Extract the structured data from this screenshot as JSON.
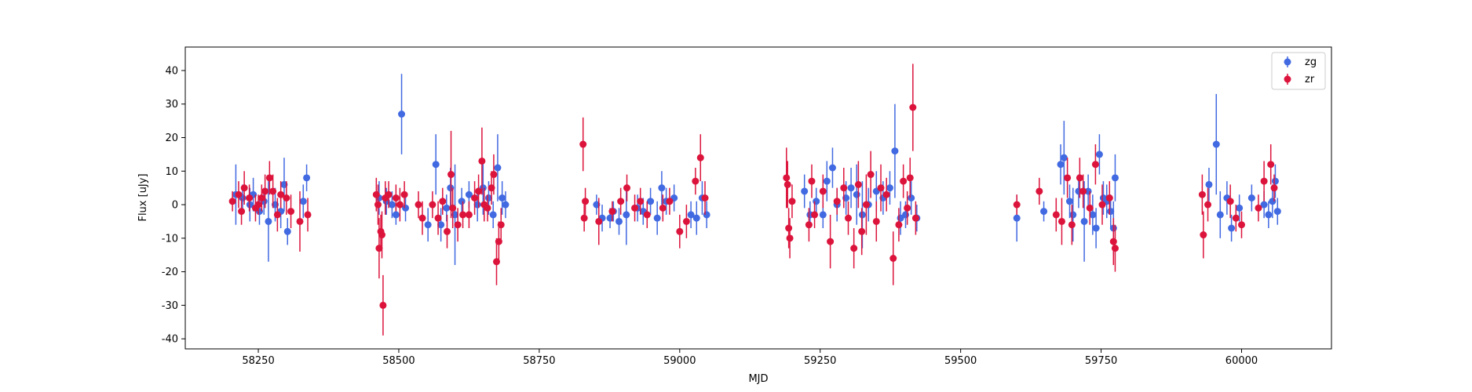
{
  "chart_data": {
    "type": "scatter",
    "title": "",
    "xlabel": "MJD",
    "ylabel": "Flux [uJy]",
    "xlim": [
      58120,
      60160
    ],
    "ylim": [
      -43,
      47
    ],
    "xticks": [
      58250,
      58500,
      58750,
      59000,
      59250,
      59500,
      59750,
      60000
    ],
    "yticks": [
      -40,
      -30,
      -20,
      -10,
      0,
      10,
      20,
      30,
      40
    ],
    "grid": false,
    "legend": "top-right",
    "colors": {
      "zg": "#4169e1",
      "zr": "#dc143c"
    },
    "series": [
      {
        "name": "zg",
        "color": "#4169e1",
        "points": [
          [
            58210,
            3,
            9
          ],
          [
            58222,
            2,
            4
          ],
          [
            58235,
            0,
            5
          ],
          [
            58241,
            3,
            5
          ],
          [
            58252,
            -2,
            4
          ],
          [
            58260,
            1,
            4
          ],
          [
            58268,
            -5,
            12
          ],
          [
            58280,
            0,
            5
          ],
          [
            58290,
            -2,
            5
          ],
          [
            58296,
            6,
            8
          ],
          [
            58302,
            -8,
            4
          ],
          [
            58330,
            1,
            5
          ],
          [
            58336,
            8,
            4
          ],
          [
            58465,
            2,
            5
          ],
          [
            58478,
            1,
            4
          ],
          [
            58488,
            0,
            4
          ],
          [
            58495,
            -3,
            3
          ],
          [
            58505,
            27,
            12
          ],
          [
            58512,
            -1,
            4
          ],
          [
            58552,
            -6,
            5
          ],
          [
            58566,
            12,
            9
          ],
          [
            58575,
            -6,
            5
          ],
          [
            58585,
            -1,
            4
          ],
          [
            58592,
            5,
            6
          ],
          [
            58600,
            -3,
            15
          ],
          [
            58612,
            1,
            4
          ],
          [
            58625,
            3,
            4
          ],
          [
            58640,
            0,
            5
          ],
          [
            58650,
            5,
            8
          ],
          [
            58660,
            2,
            5
          ],
          [
            58668,
            -3,
            4
          ],
          [
            58676,
            11,
            10
          ],
          [
            58684,
            2,
            5
          ],
          [
            58690,
            0,
            4
          ],
          [
            58852,
            0,
            3
          ],
          [
            58862,
            -4,
            4
          ],
          [
            58876,
            -4,
            3
          ],
          [
            58882,
            -2,
            3
          ],
          [
            58892,
            -5,
            4
          ],
          [
            58905,
            -3,
            9
          ],
          [
            58925,
            -1,
            4
          ],
          [
            58935,
            -2,
            4
          ],
          [
            58948,
            1,
            4
          ],
          [
            58960,
            -4,
            5
          ],
          [
            58968,
            5,
            5
          ],
          [
            58976,
            1,
            4
          ],
          [
            58990,
            2,
            4
          ],
          [
            59020,
            -3,
            4
          ],
          [
            59030,
            -4,
            5
          ],
          [
            59040,
            2,
            5
          ],
          [
            59048,
            -3,
            4
          ],
          [
            59222,
            4,
            5
          ],
          [
            59232,
            -3,
            4
          ],
          [
            59243,
            1,
            4
          ],
          [
            59255,
            -3,
            4
          ],
          [
            59262,
            7,
            6
          ],
          [
            59272,
            11,
            6
          ],
          [
            59280,
            0,
            5
          ],
          [
            59296,
            2,
            5
          ],
          [
            59305,
            5,
            6
          ],
          [
            59315,
            3,
            9
          ],
          [
            59325,
            -3,
            10
          ],
          [
            59336,
            0,
            5
          ],
          [
            59350,
            4,
            6
          ],
          [
            59362,
            2,
            5
          ],
          [
            59374,
            5,
            5
          ],
          [
            59383,
            16,
            14
          ],
          [
            59393,
            -4,
            5
          ],
          [
            59402,
            -3,
            4
          ],
          [
            59412,
            2,
            5
          ],
          [
            59422,
            -4,
            4
          ],
          [
            59600,
            -4,
            7
          ],
          [
            59648,
            -2,
            3
          ],
          [
            59678,
            12,
            6
          ],
          [
            59684,
            14,
            11
          ],
          [
            59694,
            1,
            5
          ],
          [
            59700,
            -3,
            8
          ],
          [
            59710,
            4,
            5
          ],
          [
            59720,
            -5,
            12
          ],
          [
            59727,
            4,
            5
          ],
          [
            59735,
            -3,
            6
          ],
          [
            59741,
            -7,
            6
          ],
          [
            59747,
            15,
            6
          ],
          [
            59754,
            2,
            5
          ],
          [
            59760,
            1,
            5
          ],
          [
            59767,
            -2,
            5
          ],
          [
            59772,
            -7,
            8
          ],
          [
            59775,
            8,
            7
          ],
          [
            59942,
            6,
            5
          ],
          [
            59955,
            18,
            15
          ],
          [
            59962,
            -3,
            7
          ],
          [
            59974,
            2,
            5
          ],
          [
            59982,
            -7,
            4
          ],
          [
            59996,
            -1,
            4
          ],
          [
            60018,
            2,
            4
          ],
          [
            60040,
            0,
            4
          ],
          [
            60048,
            -3,
            4
          ],
          [
            60055,
            1,
            5
          ],
          [
            60060,
            7,
            5
          ],
          [
            60064,
            -2,
            4
          ]
        ]
      },
      {
        "name": "zr",
        "color": "#dc143c",
        "points": [
          [
            58204,
            1,
            3
          ],
          [
            58215,
            3,
            4
          ],
          [
            58220,
            -2,
            4
          ],
          [
            58225,
            5,
            5
          ],
          [
            58234,
            2,
            4
          ],
          [
            58245,
            -1,
            4
          ],
          [
            58250,
            0,
            3
          ],
          [
            58256,
            2,
            4
          ],
          [
            58262,
            4,
            5
          ],
          [
            58270,
            8,
            5
          ],
          [
            58276,
            4,
            5
          ],
          [
            58284,
            -3,
            5
          ],
          [
            58290,
            3,
            4
          ],
          [
            58300,
            2,
            5
          ],
          [
            58308,
            -2,
            5
          ],
          [
            58324,
            -5,
            9
          ],
          [
            58338,
            -3,
            5
          ],
          [
            58460,
            3,
            5
          ],
          [
            58463,
            0,
            6
          ],
          [
            58465,
            -13,
            9
          ],
          [
            58468,
            -8,
            5
          ],
          [
            58470,
            -9,
            7
          ],
          [
            58472,
            -30,
            9
          ],
          [
            58476,
            2,
            5
          ],
          [
            58482,
            3,
            4
          ],
          [
            58495,
            2,
            4
          ],
          [
            58502,
            0,
            5
          ],
          [
            58510,
            3,
            4
          ],
          [
            58535,
            0,
            4
          ],
          [
            58542,
            -4,
            5
          ],
          [
            58560,
            0,
            4
          ],
          [
            58570,
            -4,
            5
          ],
          [
            58578,
            1,
            4
          ],
          [
            58586,
            -8,
            5
          ],
          [
            58593,
            9,
            13
          ],
          [
            58596,
            -1,
            6
          ],
          [
            58605,
            -6,
            5
          ],
          [
            58614,
            -3,
            4
          ],
          [
            58625,
            -3,
            4
          ],
          [
            58635,
            2,
            5
          ],
          [
            58642,
            4,
            5
          ],
          [
            58648,
            13,
            10
          ],
          [
            58652,
            0,
            5
          ],
          [
            58658,
            -1,
            4
          ],
          [
            58665,
            5,
            5
          ],
          [
            58669,
            9,
            6
          ],
          [
            58674,
            -17,
            7
          ],
          [
            58678,
            -11,
            6
          ],
          [
            58682,
            -6,
            5
          ],
          [
            58828,
            18,
            8
          ],
          [
            58830,
            -4,
            4
          ],
          [
            58832,
            1,
            4
          ],
          [
            58856,
            -5,
            7
          ],
          [
            58880,
            -2,
            3
          ],
          [
            58895,
            1,
            4
          ],
          [
            58906,
            5,
            4
          ],
          [
            58920,
            -1,
            4
          ],
          [
            58930,
            1,
            4
          ],
          [
            58942,
            -3,
            4
          ],
          [
            58970,
            -1,
            4
          ],
          [
            58982,
            1,
            4
          ],
          [
            59000,
            -8,
            5
          ],
          [
            59012,
            -5,
            5
          ],
          [
            59028,
            7,
            4
          ],
          [
            59037,
            14,
            7
          ],
          [
            59045,
            2,
            5
          ],
          [
            59190,
            8,
            9
          ],
          [
            59192,
            6,
            7
          ],
          [
            59194,
            -7,
            6
          ],
          [
            59196,
            -10,
            6
          ],
          [
            59200,
            1,
            5
          ],
          [
            59230,
            -6,
            5
          ],
          [
            59235,
            7,
            5
          ],
          [
            59240,
            -3,
            4
          ],
          [
            59255,
            4,
            5
          ],
          [
            59268,
            -11,
            8
          ],
          [
            59280,
            1,
            4
          ],
          [
            59292,
            5,
            6
          ],
          [
            59300,
            -4,
            5
          ],
          [
            59310,
            -13,
            6
          ],
          [
            59318,
            6,
            7
          ],
          [
            59324,
            -8,
            7
          ],
          [
            59332,
            0,
            9
          ],
          [
            59340,
            9,
            7
          ],
          [
            59350,
            -5,
            6
          ],
          [
            59358,
            5,
            7
          ],
          [
            59368,
            3,
            5
          ],
          [
            59380,
            -16,
            8
          ],
          [
            59390,
            -6,
            5
          ],
          [
            59398,
            7,
            5
          ],
          [
            59405,
            -1,
            5
          ],
          [
            59410,
            8,
            6
          ],
          [
            59415,
            29,
            13
          ],
          [
            59420,
            -4,
            5
          ],
          [
            59600,
            0,
            3
          ],
          [
            59640,
            4,
            4
          ],
          [
            59670,
            -3,
            5
          ],
          [
            59680,
            -5,
            7
          ],
          [
            59690,
            8,
            6
          ],
          [
            59698,
            -6,
            6
          ],
          [
            59712,
            8,
            6
          ],
          [
            59718,
            4,
            5
          ],
          [
            59730,
            -1,
            5
          ],
          [
            59740,
            12,
            6
          ],
          [
            59752,
            0,
            6
          ],
          [
            59765,
            2,
            5
          ],
          [
            59772,
            -11,
            7
          ],
          [
            59775,
            -13,
            7
          ],
          [
            59930,
            3,
            6
          ],
          [
            59932,
            -9,
            7
          ],
          [
            59940,
            0,
            5
          ],
          [
            59980,
            1,
            5
          ],
          [
            59990,
            -4,
            4
          ],
          [
            60000,
            -6,
            4
          ],
          [
            60030,
            -1,
            4
          ],
          [
            60040,
            7,
            6
          ],
          [
            60052,
            12,
            6
          ],
          [
            60058,
            5,
            4
          ]
        ]
      }
    ]
  }
}
